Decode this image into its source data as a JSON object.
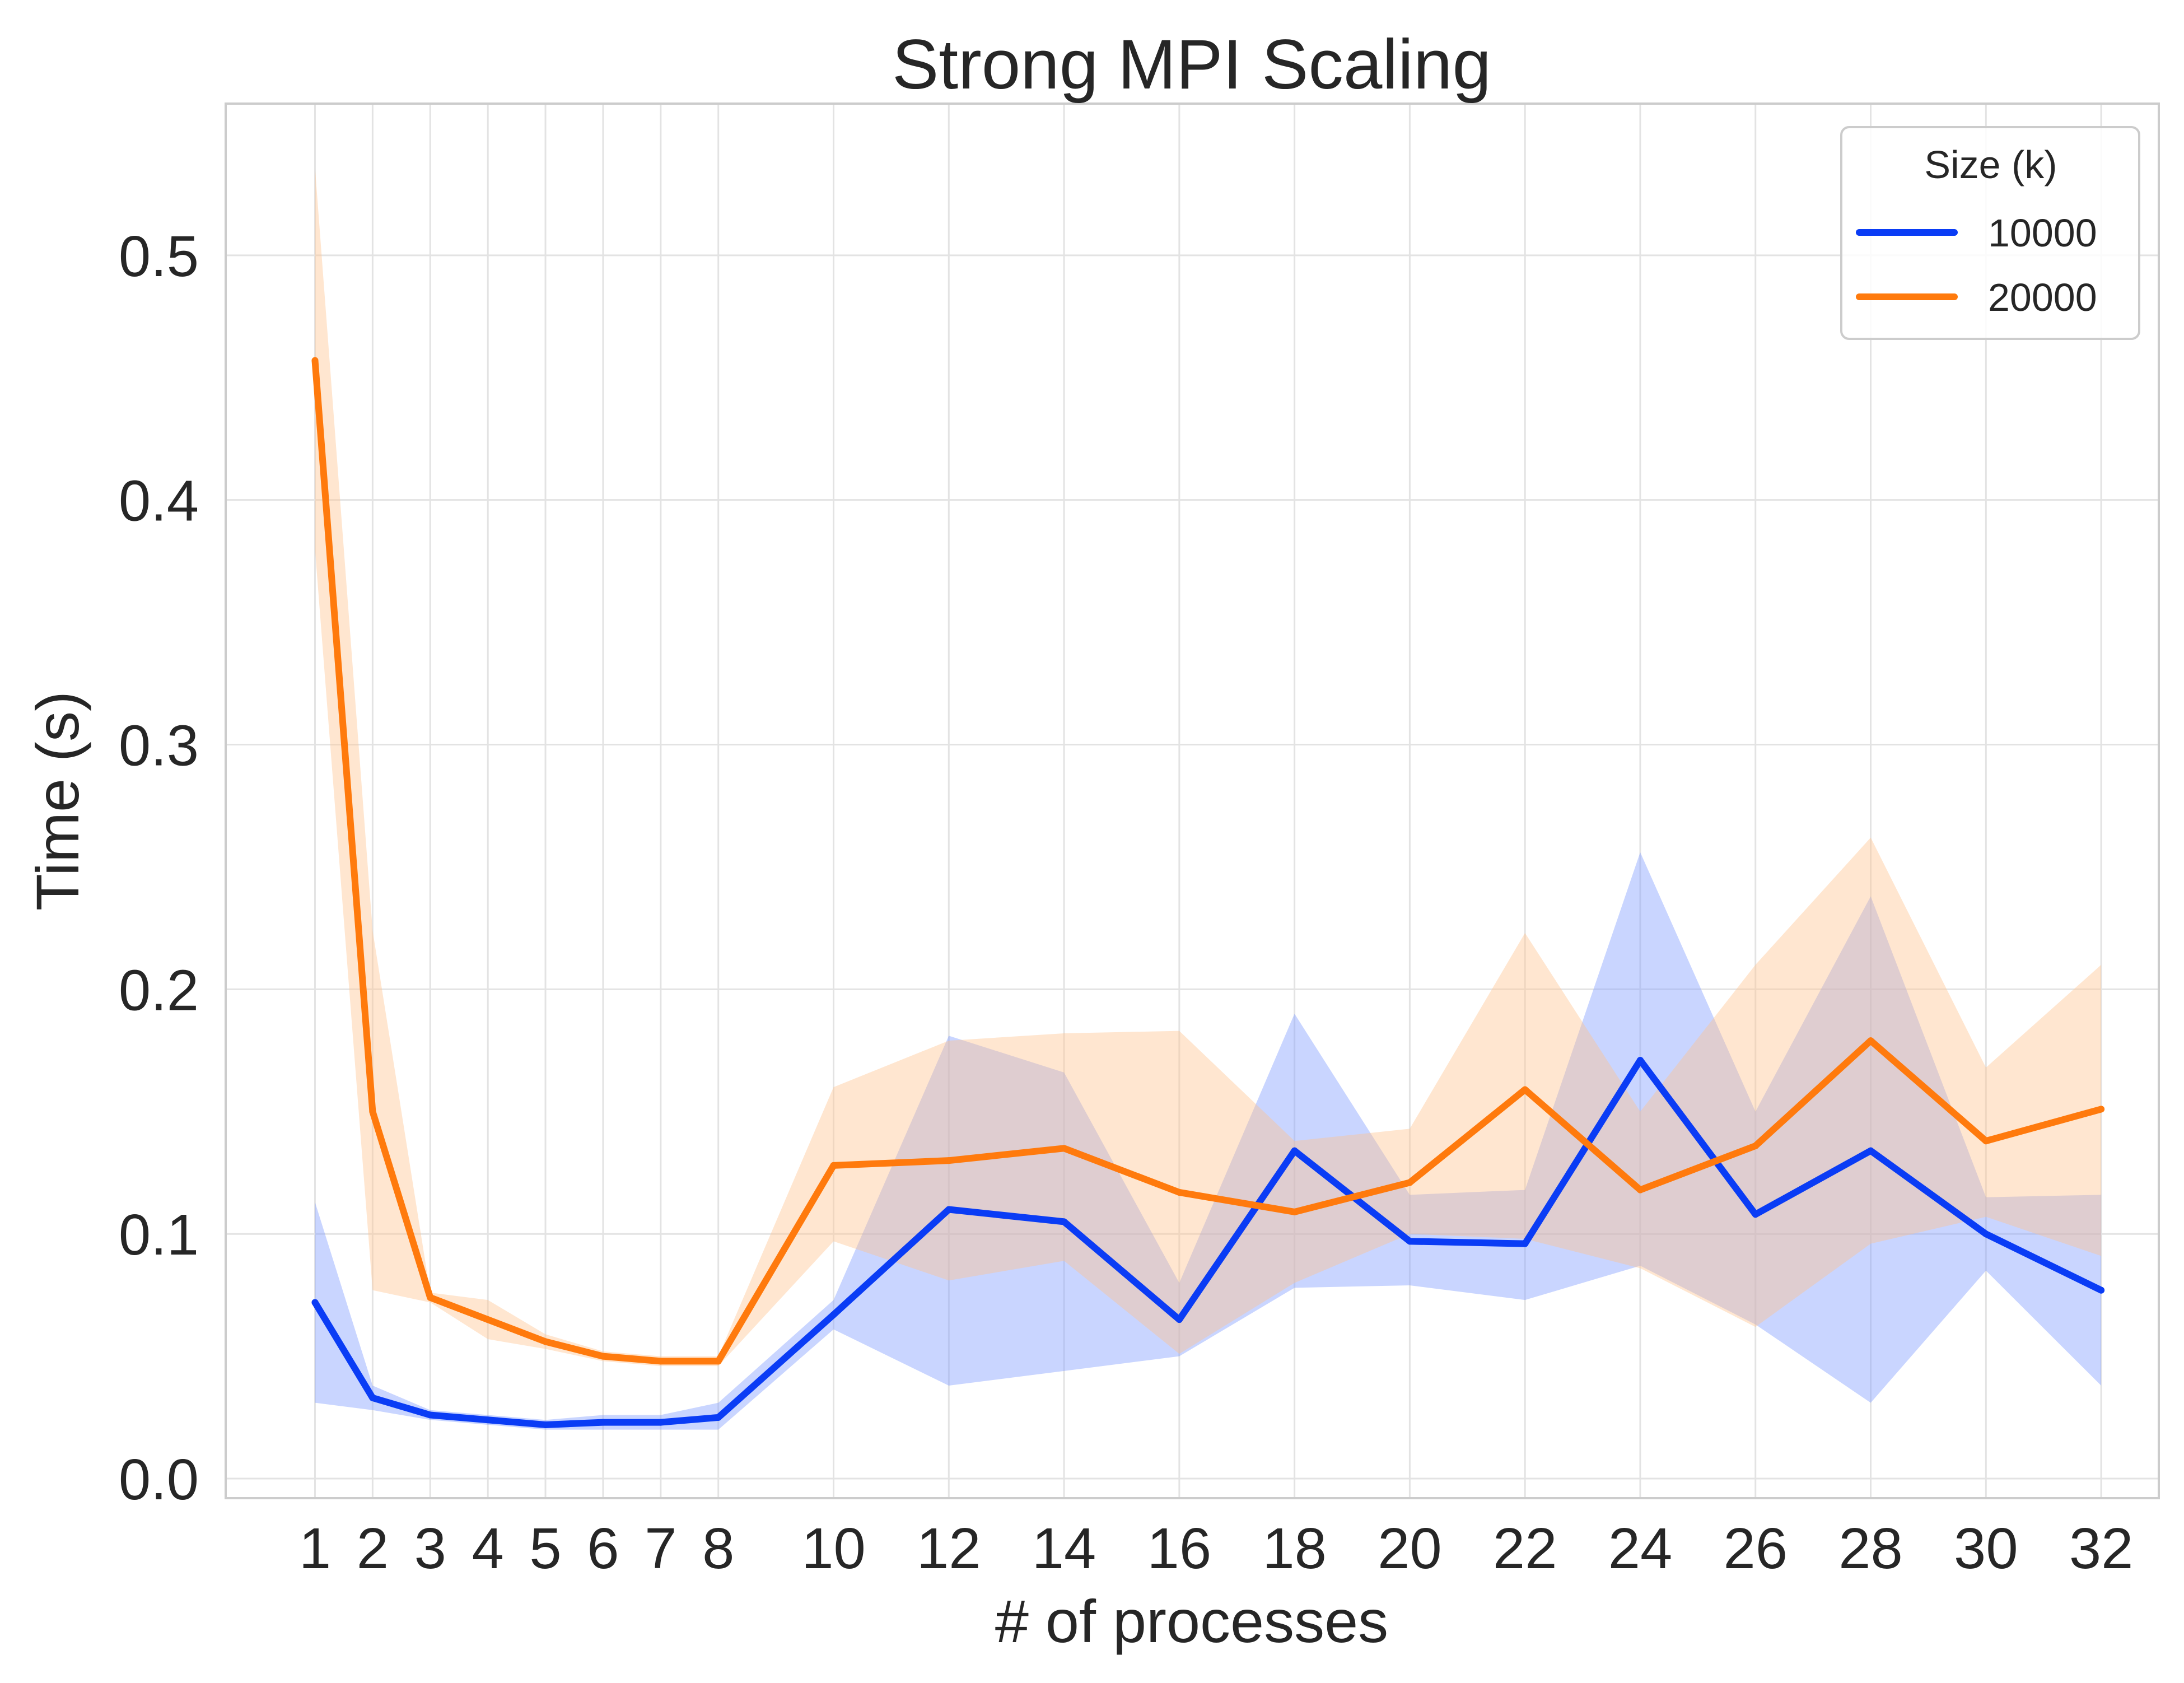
{
  "chart_data": {
    "type": "line",
    "title": "Strong MPI Scaling",
    "xlabel": "# of processes",
    "ylabel": "Time (s)",
    "x": [
      1,
      2,
      3,
      4,
      5,
      6,
      7,
      8,
      10,
      12,
      14,
      16,
      18,
      20,
      22,
      24,
      26,
      28,
      30,
      32
    ],
    "x_tick_labels": [
      "1",
      "2",
      "3",
      "4",
      "5",
      "6",
      "7",
      "8",
      "10",
      "12",
      "14",
      "16",
      "18",
      "20",
      "22",
      "24",
      "26",
      "28",
      "30",
      "32"
    ],
    "y_ticks": [
      0.0,
      0.1,
      0.2,
      0.3,
      0.4,
      0.5
    ],
    "y_tick_labels": [
      "0.0",
      "0.1",
      "0.2",
      "0.3",
      "0.4",
      "0.5"
    ],
    "xlim": [
      -0.55,
      33.0
    ],
    "ylim": [
      -0.008,
      0.562
    ],
    "grid": true,
    "legend": {
      "title": "Size (k)",
      "placement": "top-right"
    },
    "series": [
      {
        "name": "10000",
        "color": "#0a3cf5",
        "band_color": "#7f9cff",
        "values": [
          0.072,
          0.033,
          0.026,
          0.024,
          0.022,
          0.023,
          0.023,
          0.025,
          0.067,
          0.11,
          0.105,
          0.065,
          0.134,
          0.097,
          0.096,
          0.171,
          0.108,
          0.134,
          0.1,
          0.077
        ],
        "lower": [
          0.031,
          0.028,
          0.024,
          0.022,
          0.02,
          0.02,
          0.02,
          0.02,
          0.061,
          0.038,
          0.044,
          0.05,
          0.078,
          0.079,
          0.073,
          0.087,
          0.063,
          0.031,
          0.085,
          0.038
        ],
        "upper": [
          0.113,
          0.038,
          0.028,
          0.026,
          0.024,
          0.026,
          0.026,
          0.031,
          0.073,
          0.181,
          0.166,
          0.08,
          0.19,
          0.116,
          0.118,
          0.256,
          0.15,
          0.238,
          0.115,
          0.116
        ]
      },
      {
        "name": "20000",
        "color": "#ff7a0d",
        "band_color": "#ffc38f",
        "values": [
          0.457,
          0.15,
          0.074,
          0.065,
          0.056,
          0.05,
          0.048,
          0.048,
          0.128,
          0.13,
          0.135,
          0.117,
          0.109,
          0.121,
          0.159,
          0.118,
          0.136,
          0.179,
          0.138,
          0.151
        ],
        "lower": [
          0.38,
          0.077,
          0.072,
          0.057,
          0.053,
          0.048,
          0.046,
          0.046,
          0.097,
          0.081,
          0.089,
          0.051,
          0.08,
          0.1,
          0.098,
          0.086,
          0.062,
          0.096,
          0.107,
          0.091
        ],
        "upper": [
          0.536,
          0.224,
          0.076,
          0.073,
          0.059,
          0.052,
          0.05,
          0.05,
          0.16,
          0.179,
          0.182,
          0.183,
          0.138,
          0.143,
          0.223,
          0.15,
          0.21,
          0.262,
          0.168,
          0.21
        ]
      }
    ]
  }
}
